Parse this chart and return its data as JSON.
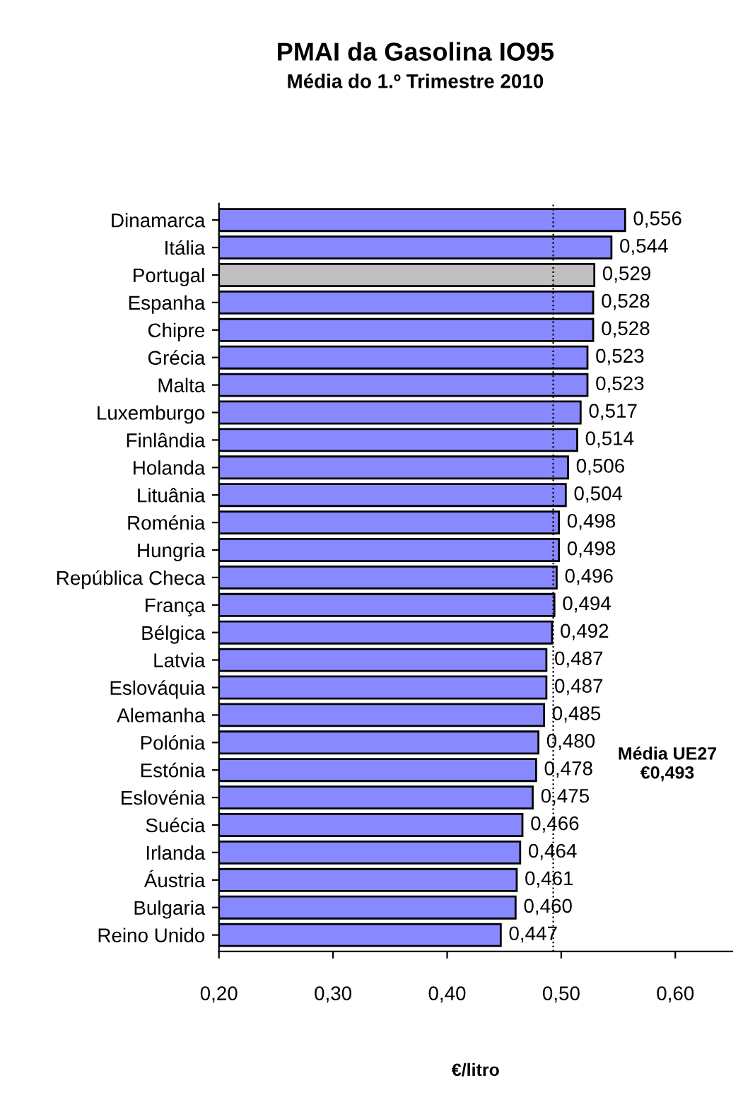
{
  "chart_data": {
    "type": "bar",
    "orientation": "horizontal",
    "title": "PMAI da Gasolina IO95",
    "subtitle": "Média do 1.º Trimestre 2010",
    "xlabel": "€/litro",
    "categories": [
      "Dinamarca",
      "Itália",
      "Portugal",
      "Espanha",
      "Chipre",
      "Grécia",
      "Malta",
      "Luxemburgo",
      "Finlândia",
      "Holanda",
      "Lituânia",
      "Roménia",
      "Hungria",
      "República Checa",
      "França",
      "Bélgica",
      "Latvia",
      "Eslováquia",
      "Alemanha",
      "Polónia",
      "Estónia",
      "Eslovénia",
      "Suécia",
      "Irlanda",
      "Áustria",
      "Bulgaria",
      "Reino Unido"
    ],
    "values": [
      0.556,
      0.544,
      0.529,
      0.528,
      0.528,
      0.523,
      0.523,
      0.517,
      0.514,
      0.506,
      0.504,
      0.498,
      0.498,
      0.496,
      0.494,
      0.492,
      0.487,
      0.487,
      0.485,
      0.48,
      0.478,
      0.475,
      0.466,
      0.464,
      0.461,
      0.46,
      0.447
    ],
    "value_labels": [
      "0,556",
      "0,544",
      "0,529",
      "0,528",
      "0,528",
      "0,523",
      "0,523",
      "0,517",
      "0,514",
      "0,506",
      "0,504",
      "0,498",
      "0,498",
      "0,496",
      "0,494",
      "0,492",
      "0,487",
      "0,487",
      "0,485",
      "0,480",
      "0,478",
      "0,475",
      "0,466",
      "0,464",
      "0,461",
      "0,460",
      "0,447"
    ],
    "colors": [
      "#8888ff",
      "#8888ff",
      "#c0c0c0",
      "#8888ff",
      "#8888ff",
      "#8888ff",
      "#8888ff",
      "#8888ff",
      "#8888ff",
      "#8888ff",
      "#8888ff",
      "#8888ff",
      "#8888ff",
      "#8888ff",
      "#8888ff",
      "#8888ff",
      "#8888ff",
      "#8888ff",
      "#8888ff",
      "#8888ff",
      "#8888ff",
      "#8888ff",
      "#8888ff",
      "#8888ff",
      "#8888ff",
      "#8888ff",
      "#8888ff"
    ],
    "xlim": [
      0.2,
      0.65
    ],
    "xticks": [
      {
        "value": 0.2,
        "label": "0,20"
      },
      {
        "value": 0.3,
        "label": "0,30"
      },
      {
        "value": 0.4,
        "label": "0,40"
      },
      {
        "value": 0.5,
        "label": "0,50"
      },
      {
        "value": 0.6,
        "label": "0,60"
      }
    ],
    "ref_lines": [
      {
        "axis": "x",
        "value": 0.493,
        "label": "Média UE27\n€0,493",
        "color": "#000000",
        "line_style": "dotted"
      }
    ],
    "grid": false
  }
}
